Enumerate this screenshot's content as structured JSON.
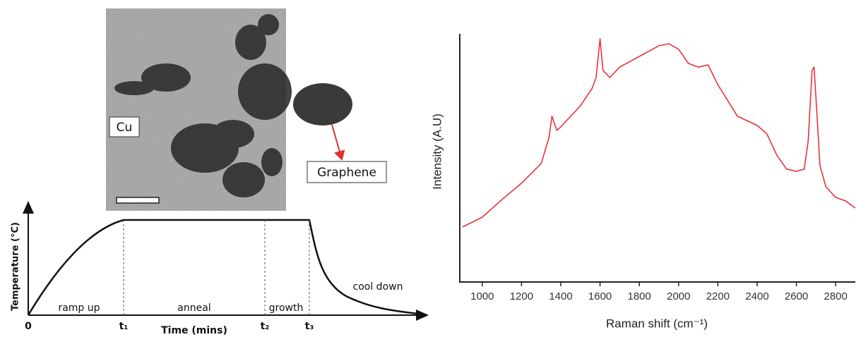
{
  "micrograph": {
    "labels": [
      "Cu",
      "Graphene"
    ]
  },
  "schematic": {
    "y_label": "Temperature (°C)",
    "x_label": "Time (mins)",
    "x_ticks": [
      "0",
      "t₁",
      "t₂",
      "t₃"
    ],
    "phases": [
      "ramp up",
      "anneal",
      "growth",
      "cool down"
    ]
  },
  "chart_data": {
    "type": "line",
    "x_label": "Raman shift (cm⁻¹)",
    "y_label": "Intensity (A.U)",
    "xlim": [
      900,
      2900
    ],
    "xticks": [
      1000,
      1200,
      1400,
      1600,
      1800,
      2000,
      2200,
      2400,
      2600,
      2800
    ],
    "ylim": [
      0,
      100
    ],
    "color": "#e8323a",
    "x": [
      900,
      1000,
      1100,
      1200,
      1300,
      1340,
      1355,
      1380,
      1400,
      1500,
      1560,
      1580,
      1600,
      1615,
      1650,
      1700,
      1800,
      1900,
      1950,
      2000,
      2050,
      2100,
      2150,
      2200,
      2300,
      2400,
      2450,
      2500,
      2550,
      2600,
      2640,
      2660,
      2680,
      2690,
      2700,
      2720,
      2750,
      2800,
      2850,
      2900
    ],
    "values": [
      22.2,
      26.1,
      33.2,
      39.8,
      47.7,
      58.2,
      66.8,
      61.1,
      62.5,
      71.0,
      78.1,
      82.4,
      98.0,
      85.2,
      82.4,
      86.6,
      90.9,
      95.2,
      96.0,
      93.8,
      88.1,
      86.6,
      87.5,
      79.5,
      66.8,
      63.1,
      59.7,
      51.1,
      45.5,
      44.6,
      45.5,
      56.8,
      85.2,
      86.6,
      73.9,
      46.9,
      38.4,
      34.1,
      32.7,
      29.8
    ]
  }
}
